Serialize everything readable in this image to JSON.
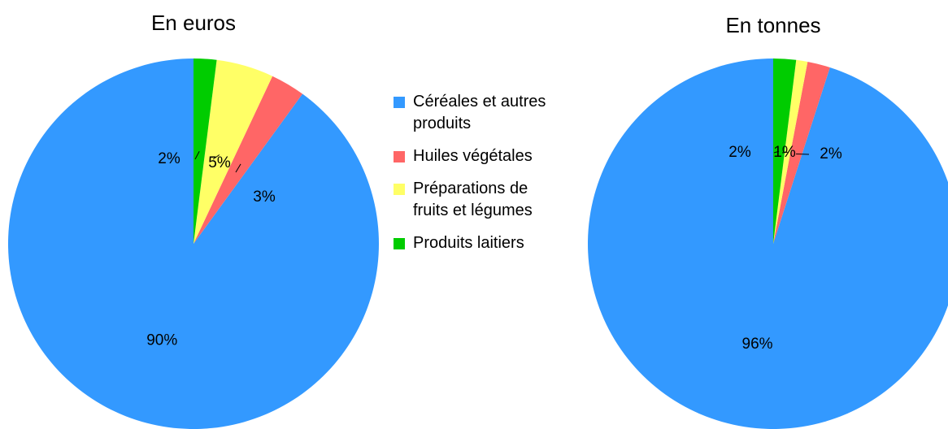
{
  "categories": [
    "Céréales et autres produits",
    "Huiles végétales",
    "Préparations de fruits et légumes",
    "Produits laitiers"
  ],
  "colors": [
    "#3399ff",
    "#ff6666",
    "#ffff66",
    "#00cc00"
  ],
  "chart_data": [
    {
      "type": "pie",
      "title": "En euros",
      "values": [
        90,
        3,
        5,
        2
      ],
      "value_labels": [
        "90%",
        "3%",
        "5%",
        "2%"
      ]
    },
    {
      "type": "pie",
      "title": "En tonnes",
      "values": [
        96,
        2,
        1,
        2
      ],
      "value_labels": [
        "96%",
        "2%",
        "1%",
        "2%"
      ]
    }
  ]
}
